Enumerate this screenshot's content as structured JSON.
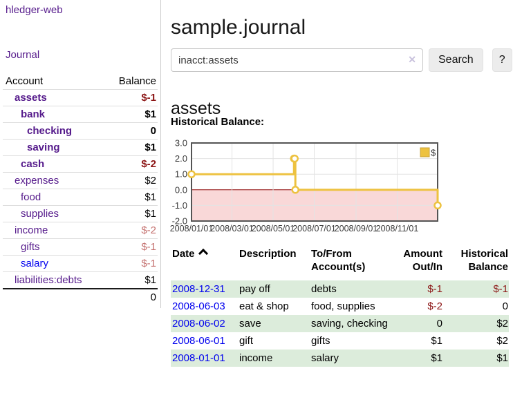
{
  "app": {
    "brand": "hledger-web",
    "nav_journal": "Journal"
  },
  "sidebar": {
    "headers": {
      "account": "Account",
      "balance": "Balance"
    },
    "rows": [
      {
        "name": "assets",
        "level": 0,
        "bold": true,
        "balance": "$-1",
        "balance_style": "neg-strong"
      },
      {
        "name": "bank",
        "level": 1,
        "bold": true,
        "balance": "$1",
        "balance_style": "pos"
      },
      {
        "name": "checking",
        "level": 2,
        "bold": true,
        "balance": "0",
        "balance_style": "pos"
      },
      {
        "name": "saving",
        "level": 2,
        "bold": true,
        "balance": "$1",
        "balance_style": "pos"
      },
      {
        "name": "cash",
        "level": 1,
        "bold": true,
        "balance": "$-2",
        "balance_style": "neg-strong"
      },
      {
        "name": "expenses",
        "level": 0,
        "bold": false,
        "balance": "$2",
        "balance_style": "pos"
      },
      {
        "name": "food",
        "level": 1,
        "bold": false,
        "balance": "$1",
        "balance_style": "pos"
      },
      {
        "name": "supplies",
        "level": 1,
        "bold": false,
        "balance": "$1",
        "balance_style": "pos"
      },
      {
        "name": "income",
        "level": 0,
        "bold": false,
        "balance": "$-2",
        "balance_style": "neg-soft"
      },
      {
        "name": "gifts",
        "level": 1,
        "bold": false,
        "balance": "$-1",
        "balance_style": "neg-soft"
      },
      {
        "name": "salary",
        "level": 1,
        "bold": false,
        "balance": "$-1",
        "balance_style": "neg-soft",
        "link_color": "blue"
      },
      {
        "name": "liabilities:debts",
        "level": 0,
        "bold": false,
        "balance": "$1",
        "balance_style": "pos"
      }
    ],
    "total": "0"
  },
  "main": {
    "title": "sample.journal",
    "search": {
      "value": "inacct:assets",
      "clear_icon": "✕",
      "button": "Search",
      "help": "?"
    },
    "account_heading": "assets",
    "chart_label": "Historical Balance:",
    "register": {
      "sort": "date ascending",
      "headers": {
        "date": "Date",
        "description": "Description",
        "accounts_l1": "To/From",
        "accounts_l2": "Account(s)",
        "amount_l1": "Amount",
        "amount_l2": "Out/In",
        "balance_l1": "Historical",
        "balance_l2": "Balance"
      },
      "rows": [
        {
          "date": "2008-12-31",
          "description": "pay off",
          "accounts": "debts",
          "amount": "$-1",
          "amount_neg": true,
          "balance": "$-1",
          "balance_neg": true,
          "shaded": true
        },
        {
          "date": "2008-06-03",
          "description": "eat & shop",
          "accounts": "food, supplies",
          "amount": "$-2",
          "amount_neg": true,
          "balance": "0",
          "balance_neg": false,
          "shaded": false
        },
        {
          "date": "2008-06-02",
          "description": "save",
          "accounts": "saving, checking",
          "amount": "0",
          "amount_neg": false,
          "balance": "$2",
          "balance_neg": false,
          "shaded": true
        },
        {
          "date": "2008-06-01",
          "description": "gift",
          "accounts": "gifts",
          "amount": "$1",
          "amount_neg": false,
          "balance": "$2",
          "balance_neg": false,
          "shaded": false
        },
        {
          "date": "2008-01-01",
          "description": "income",
          "accounts": "salary",
          "amount": "$1",
          "amount_neg": false,
          "balance": "$1",
          "balance_neg": false,
          "shaded": true
        }
      ]
    }
  },
  "chart_data": {
    "type": "line",
    "title": "Historical Balance",
    "step": true,
    "series": [
      {
        "name": "$",
        "color": "#edc240",
        "points": [
          [
            "2008-01-01",
            1
          ],
          [
            "2008-06-01",
            2
          ],
          [
            "2008-06-02",
            2
          ],
          [
            "2008-06-03",
            0
          ],
          [
            "2008-12-31",
            -1
          ]
        ]
      }
    ],
    "xlim": [
      "2008-01-01",
      "2008-12-31"
    ],
    "ylim": [
      -2,
      3
    ],
    "x_ticks": [
      "2008/01/01",
      "2008/03/01",
      "2008/05/01",
      "2008/07/01",
      "2008/09/01",
      "2008/11/01"
    ],
    "y_ticks": [
      "3.0",
      "2.0",
      "1.0",
      "0.0",
      "-1.0",
      "-2.0"
    ],
    "grid": true,
    "legend": {
      "label": "$",
      "position": "top-right"
    },
    "colors": {
      "line": "#edc240",
      "marker_fill": "#ffffff",
      "negative_region_fill": "#f9d8d8",
      "zero_line": "#8b0000",
      "gridline": "#e3e3e3",
      "plot_border": "#545454",
      "tick_text": "#3a3a3a"
    }
  }
}
